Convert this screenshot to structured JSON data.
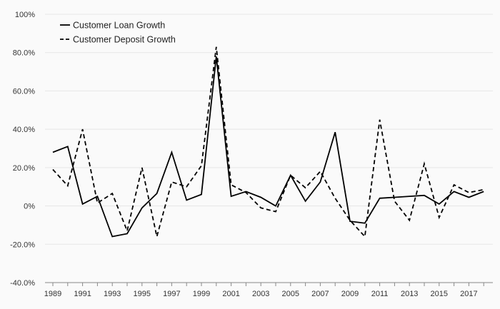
{
  "chart_data": {
    "type": "line",
    "title": "",
    "xlabel": "",
    "ylabel": "",
    "ylim": [
      -40,
      100
    ],
    "y_ticks": [
      -40,
      -20,
      0,
      20,
      40,
      60,
      80,
      100
    ],
    "y_tick_labels": [
      "-40.0%",
      "-20.0%",
      "0%",
      "20.0%",
      "40.0%",
      "60.0%",
      "80.0%",
      "100%"
    ],
    "x_tick_labels": [
      "1989",
      "1991",
      "1993",
      "1995",
      "1997",
      "1999",
      "2001",
      "2003",
      "2005",
      "2007",
      "2009",
      "2011",
      "2013",
      "2015",
      "2017"
    ],
    "x": [
      1989,
      1990,
      1991,
      1992,
      1993,
      1994,
      1995,
      1996,
      1997,
      1998,
      1999,
      2000,
      2001,
      2002,
      2003,
      2004,
      2005,
      2006,
      2007,
      2008,
      2009,
      2010,
      2011,
      2012,
      2013,
      2014,
      2015,
      2016,
      2017,
      2018
    ],
    "grid": true,
    "legend_position": "top-left",
    "series": [
      {
        "name": "Customer Loan Growth",
        "style": "solid",
        "color": "#000000",
        "values": [
          28,
          31,
          1,
          5,
          -16,
          -14.5,
          -1,
          6.5,
          28,
          3,
          6,
          78,
          5,
          7.5,
          4.5,
          0,
          16,
          2.5,
          12.5,
          38.5,
          -8,
          -9,
          4,
          4.5,
          5,
          5.5,
          1,
          7.5,
          4.5,
          7.5
        ]
      },
      {
        "name": "Customer Deposit Growth",
        "style": "dashed",
        "color": "#000000",
        "values": [
          19,
          10.5,
          40,
          1.5,
          6.5,
          -13,
          20,
          -16,
          12.5,
          10,
          21,
          83,
          11,
          7,
          -1,
          -3,
          16,
          9.5,
          18,
          4,
          -7.5,
          -16,
          45,
          2.5,
          -7.5,
          22,
          -6,
          11,
          7,
          8.5
        ]
      }
    ]
  }
}
